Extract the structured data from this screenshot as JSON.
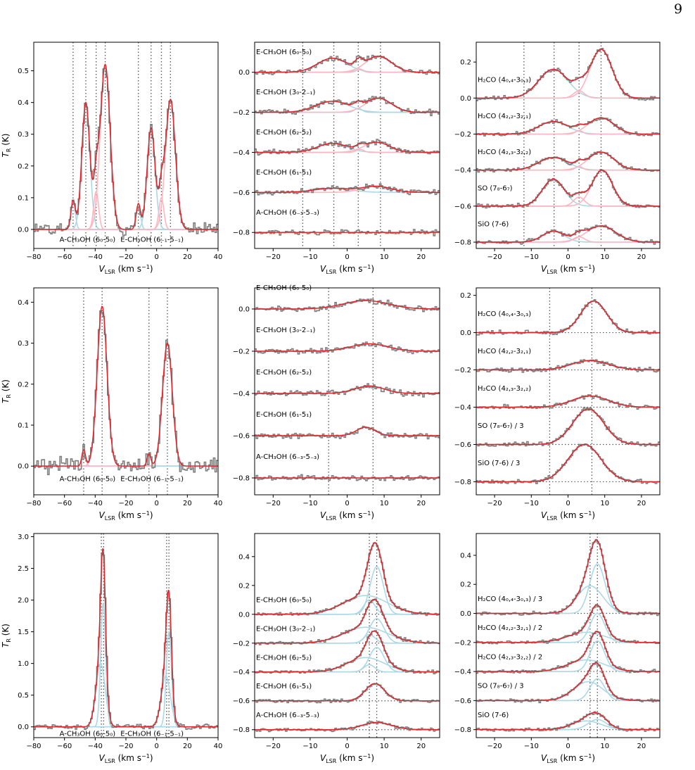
{
  "page_number": "9",
  "colors": {
    "data": "#808080",
    "fit": "#e0242a",
    "comp_blue": "#add8e6",
    "comp_pink": "#ffb6c1",
    "ref": "#555555"
  },
  "chart_data": [
    {
      "type": "line",
      "panel": "row1-left",
      "xlim": [
        -80,
        40
      ],
      "ylim": [
        -0.06,
        0.59
      ],
      "xlabel": "V_LSR (km s⁻¹)",
      "ylabel": "T_R (K)",
      "xticks": [
        -80,
        -60,
        -40,
        -20,
        0,
        20,
        40
      ],
      "yticks": [
        0,
        0.1,
        0.2,
        0.3,
        0.4,
        0.5
      ],
      "ytick_decimals": 1,
      "vlines": [
        -54.4,
        -46.1,
        -39.4,
        -33.5,
        -11.9,
        -3.6,
        3.1,
        9.0
      ],
      "line_labels": [
        {
          "text": "A-CH₃OH (6₀-5₀)",
          "x": -45
        },
        {
          "text": "E-CH₃OH (6₋₁-5₋₁)",
          "x": -3
        }
      ],
      "label_y": -0.03,
      "noise": 0.012,
      "components": [
        {
          "color": "blue",
          "amp": 0.09,
          "center": -54.4,
          "sigma": 1.4
        },
        {
          "color": "blue",
          "amp": 0.4,
          "center": -46.1,
          "sigma": 2.6
        },
        {
          "color": "pink",
          "amp": 0.12,
          "center": -39.4,
          "sigma": 1.6
        },
        {
          "color": "pink",
          "amp": 0.52,
          "center": -33.5,
          "sigma": 3.2
        },
        {
          "color": "blue",
          "amp": 0.08,
          "center": -11.9,
          "sigma": 1.4
        },
        {
          "color": "blue",
          "amp": 0.32,
          "center": -3.6,
          "sigma": 2.6
        },
        {
          "color": "pink",
          "amp": 0.1,
          "center": 3.1,
          "sigma": 1.6
        },
        {
          "color": "pink",
          "amp": 0.41,
          "center": 9.0,
          "sigma": 3.2
        }
      ]
    },
    {
      "type": "line",
      "panel": "row1-middle",
      "xlim": [
        -25,
        25
      ],
      "ylim": [
        -0.88,
        0.15
      ],
      "xlabel": "V_LSR (km s⁻¹)",
      "ylabel": "",
      "xticks": [
        -20,
        -10,
        0,
        10,
        20
      ],
      "yticks": [
        -0.8,
        -0.6,
        -0.4,
        -0.2,
        0
      ],
      "ytick_decimals": 1,
      "vlines": [
        -12,
        -3.6,
        3,
        9
      ],
      "hline_dotted": false,
      "noise": 0.008,
      "stacks": [
        {
          "label": "E-CH₃OH (6₀-5₀)",
          "offset": 0,
          "components": [
            {
              "color": "blue",
              "amp": 0.07,
              "center": -4,
              "sigma": 4
            },
            {
              "color": "blue",
              "amp": 0.02,
              "center": 3,
              "sigma": 1
            },
            {
              "color": "pink",
              "amp": 0.08,
              "center": 8.5,
              "sigma": 3.5
            },
            {
              "color": "pink",
              "amp": 0.015,
              "center": 3.5,
              "sigma": 1
            }
          ]
        },
        {
          "label": "E-CH₃OH (3₀-2₋₁)",
          "offset": -0.2,
          "components": [
            {
              "color": "blue",
              "amp": 0.055,
              "center": -4,
              "sigma": 4.5
            },
            {
              "color": "blue",
              "amp": 0.02,
              "center": 3,
              "sigma": 1
            },
            {
              "color": "pink",
              "amp": 0.07,
              "center": 8.5,
              "sigma": 3.5
            }
          ]
        },
        {
          "label": "E-CH₃OH (6₂-5₂)",
          "offset": -0.4,
          "components": [
            {
              "color": "blue",
              "amp": 0.045,
              "center": -4,
              "sigma": 4
            },
            {
              "color": "pink",
              "amp": 0.05,
              "center": 8,
              "sigma": 3.5
            },
            {
              "color": "pink",
              "amp": 0.015,
              "center": 3.5,
              "sigma": 1
            }
          ]
        },
        {
          "label": "E-CH₃OH (6₁-5₁)",
          "offset": -0.6,
          "components": [
            {
              "color": "blue",
              "amp": 0.02,
              "center": -4,
              "sigma": 5
            },
            {
              "color": "pink",
              "amp": 0.03,
              "center": 8,
              "sigma": 4
            }
          ]
        },
        {
          "label": "A-CH₃OH (6₋₃-5₋₃)",
          "offset": -0.8,
          "components": []
        }
      ]
    },
    {
      "type": "line",
      "panel": "row1-right",
      "xlim": [
        -25,
        25
      ],
      "ylim": [
        -0.835,
        0.31
      ],
      "xlabel": "V_LSR (km s⁻¹)",
      "ylabel": "",
      "xticks": [
        -20,
        -10,
        0,
        10,
        20
      ],
      "yticks": [
        -0.8,
        -0.6,
        -0.4,
        -0.2,
        0,
        0.2
      ],
      "ytick_decimals": 1,
      "vlines": [
        -12,
        -3.8,
        3,
        9
      ],
      "hline_dotted": false,
      "noise": 0.007,
      "stacks": [
        {
          "label": "H₂CO (4₀,₄-3₀,₃)",
          "offset": 0,
          "components": [
            {
              "color": "blue",
              "amp": 0.16,
              "center": -4,
              "sigma": 4
            },
            {
              "color": "pink",
              "amp": 0.04,
              "center": 3,
              "sigma": 1.5
            },
            {
              "color": "pink",
              "amp": 0.27,
              "center": 9,
              "sigma": 3
            }
          ]
        },
        {
          "label": "H₂CO (4₂,₂-3₂,₁)",
          "offset": -0.2,
          "components": [
            {
              "color": "blue",
              "amp": 0.07,
              "center": -4,
              "sigma": 4
            },
            {
              "color": "pink",
              "amp": 0.02,
              "center": 3,
              "sigma": 1
            },
            {
              "color": "pink",
              "amp": 0.09,
              "center": 9,
              "sigma": 3.5
            }
          ]
        },
        {
          "label": "H₂CO (4₂,₃-3₂,₂)",
          "offset": -0.4,
          "components": [
            {
              "color": "blue",
              "amp": 0.07,
              "center": -4,
              "sigma": 4
            },
            {
              "color": "pink",
              "amp": 0.02,
              "center": 3,
              "sigma": 1
            },
            {
              "color": "pink",
              "amp": 0.1,
              "center": 9,
              "sigma": 3.5
            }
          ]
        },
        {
          "label": "SO (7₈-6₇)",
          "offset": -0.6,
          "components": [
            {
              "color": "blue",
              "amp": 0.15,
              "center": -4,
              "sigma": 3
            },
            {
              "color": "pink",
              "amp": 0.05,
              "center": 3,
              "sigma": 1.5
            },
            {
              "color": "pink",
              "amp": 0.2,
              "center": 9.3,
              "sigma": 2.8
            }
          ]
        },
        {
          "label": "SiO (7-6)",
          "offset": -0.8,
          "components": [
            {
              "color": "blue",
              "amp": 0.06,
              "center": -4,
              "sigma": 3
            },
            {
              "color": "pink",
              "amp": 0.03,
              "center": 3,
              "sigma": 1.5
            },
            {
              "color": "pink",
              "amp": 0.09,
              "center": 9,
              "sigma": 4
            }
          ]
        }
      ]
    },
    {
      "type": "line",
      "panel": "row2-left",
      "xlim": [
        -80,
        40
      ],
      "ylim": [
        -0.07,
        0.435
      ],
      "xlabel": "V_LSR (km s⁻¹)",
      "ylabel": "T_R (K)",
      "xticks": [
        -80,
        -60,
        -40,
        -20,
        0,
        20,
        40
      ],
      "yticks": [
        0,
        0.1,
        0.2,
        0.3,
        0.4
      ],
      "ytick_decimals": 1,
      "vlines": [
        -47.5,
        -35.5,
        -5,
        7
      ],
      "line_labels": [
        {
          "text": "A-CH₃OH (6₀-5₀)",
          "x": -45
        },
        {
          "text": "E-CH₃OH (6₋₁-5₋₁)",
          "x": -3
        }
      ],
      "label_y": -0.03,
      "noise": 0.013,
      "components": [
        {
          "color": "pink",
          "amp": 0.04,
          "center": -47.5,
          "sigma": 1.2
        },
        {
          "color": "pink",
          "amp": 0.39,
          "center": -35.5,
          "sigma": 3.2
        },
        {
          "color": "blue",
          "amp": 0.03,
          "center": -5,
          "sigma": 1.2
        },
        {
          "color": "pink",
          "amp": 0.3,
          "center": 7,
          "sigma": 3.2
        }
      ]
    },
    {
      "type": "line",
      "panel": "row2-middle",
      "xlim": [
        -25,
        25
      ],
      "ylim": [
        -0.88,
        0.1
      ],
      "xlabel": "V_LSR (km s⁻¹)",
      "ylabel": "",
      "xticks": [
        -20,
        -10,
        0,
        10,
        20
      ],
      "yticks": [
        -0.8,
        -0.6,
        -0.4,
        -0.2,
        0
      ],
      "ytick_decimals": 1,
      "vlines": [
        -5,
        7
      ],
      "hline_dotted": false,
      "noise": 0.008,
      "stacks": [
        {
          "label": "E-CH₃OH (6₀-5₀)",
          "offset": 0,
          "components": [
            {
              "color": "pink",
              "amp": 0.04,
              "center": 5,
              "sigma": 6
            }
          ]
        },
        {
          "label": "E-CH₃OH (3₀-2₋₁)",
          "offset": -0.2,
          "components": [
            {
              "color": "pink",
              "amp": 0.035,
              "center": 6,
              "sigma": 5
            }
          ]
        },
        {
          "label": "E-CH₃OH (6₂-5₂)",
          "offset": -0.4,
          "components": [
            {
              "color": "pink",
              "amp": 0.035,
              "center": 6,
              "sigma": 4
            }
          ]
        },
        {
          "label": "E-CH₃OH (6₁-5₁)",
          "offset": -0.6,
          "components": [
            {
              "color": "pink",
              "amp": 0.04,
              "center": 5,
              "sigma": 2.5
            }
          ]
        },
        {
          "label": "A-CH₃OH (6₋₃-5₋₃)",
          "offset": -0.8,
          "components": []
        }
      ]
    },
    {
      "type": "line",
      "panel": "row2-right",
      "xlim": [
        -25,
        25
      ],
      "ylim": [
        -0.87,
        0.24
      ],
      "xlabel": "V_LSR (km s⁻¹)",
      "ylabel": "",
      "xticks": [
        -20,
        -10,
        0,
        10,
        20
      ],
      "yticks": [
        -0.8,
        -0.6,
        -0.4,
        -0.2,
        0,
        0.2
      ],
      "ytick_decimals": 1,
      "vlines": [
        -5,
        6.5
      ],
      "hline_dotted": true,
      "noise": 0.007,
      "stacks": [
        {
          "label": "H₂CO (4₀,₄-3₀,₃)",
          "offset": 0,
          "components": [
            {
              "color": "pink",
              "amp": 0.17,
              "center": 7,
              "sigma": 3.5
            }
          ]
        },
        {
          "label": "H₂CO (4₂,₂-3₂,₁)",
          "offset": -0.2,
          "components": [
            {
              "color": "pink",
              "amp": 0.05,
              "center": 6,
              "sigma": 5
            }
          ]
        },
        {
          "label": "H₂CO (4₂,₃-3₂,₂)",
          "offset": -0.4,
          "components": [
            {
              "color": "pink",
              "amp": 0.06,
              "center": 6,
              "sigma": 5
            }
          ]
        },
        {
          "label": "SO (7₈-6₇) / 3",
          "offset": -0.6,
          "components": [
            {
              "color": "pink",
              "amp": 0.19,
              "center": 5.5,
              "sigma": 4.2
            }
          ]
        },
        {
          "label": "SiO (7-6) / 3",
          "offset": -0.8,
          "components": [
            {
              "color": "pink",
              "amp": 0.2,
              "center": 4.5,
              "sigma": 4.5
            }
          ]
        }
      ]
    },
    {
      "type": "line",
      "panel": "row3-left",
      "xlim": [
        -80,
        40
      ],
      "ylim": [
        -0.17,
        3.05
      ],
      "xlabel": "V_LSR (km s⁻¹)",
      "ylabel": "T_R (K)",
      "xticks": [
        -80,
        -60,
        -40,
        -20,
        0,
        20,
        40
      ],
      "yticks": [
        0,
        0.5,
        1,
        1.5,
        2,
        2.5,
        3
      ],
      "ytick_decimals": 1,
      "vlines": [
        -36,
        -34.5,
        6.5,
        8
      ],
      "line_labels": [
        {
          "text": "A-CH₃OH (6₀-5₀)",
          "x": -45
        },
        {
          "text": "E-CH₃OH (6₋₁-5₋₁)",
          "x": -3
        }
      ],
      "label_y": -0.1,
      "noise": 0.025,
      "components": [
        {
          "color": "blue",
          "amp": 1.0,
          "center": -36.5,
          "sigma": 3
        },
        {
          "color": "blue",
          "amp": 1.95,
          "center": -34.8,
          "sigma": 1.6
        },
        {
          "color": "blue",
          "amp": 0.8,
          "center": 6,
          "sigma": 3
        },
        {
          "color": "blue",
          "amp": 1.5,
          "center": 8,
          "sigma": 1.7
        }
      ]
    },
    {
      "type": "line",
      "panel": "row3-middle",
      "xlim": [
        -25,
        25
      ],
      "ylim": [
        -0.855,
        0.56
      ],
      "xlabel": "V_LSR (km s⁻¹)",
      "ylabel": "",
      "xticks": [
        -20,
        -10,
        0,
        10,
        20
      ],
      "yticks": [
        -0.8,
        -0.6,
        -0.4,
        -0.2,
        0,
        0.2,
        0.4
      ],
      "ytick_decimals": 1,
      "vlines": [
        6,
        8
      ],
      "hline_dotted": true,
      "noise": 0.007,
      "stacks": [
        {
          "label": "E-CH₃OH (6₀-5₀)",
          "offset": 0,
          "components": [
            {
              "color": "blue",
              "amp": 0.13,
              "center": 5,
              "sigma": 6
            },
            {
              "color": "blue",
              "amp": 0.33,
              "center": 8,
              "sigma": 1.8
            },
            {
              "color": "blue",
              "amp": 0.1,
              "center": 6,
              "sigma": 1.5
            }
          ]
        },
        {
          "label": "E-CH₃OH (3₀-2₋₁)",
          "offset": -0.2,
          "components": [
            {
              "color": "blue",
              "amp": 0.11,
              "center": 5,
              "sigma": 6
            },
            {
              "color": "blue",
              "amp": 0.17,
              "center": 8,
              "sigma": 2
            },
            {
              "color": "blue",
              "amp": 0.06,
              "center": 6,
              "sigma": 1.5
            }
          ]
        },
        {
          "label": "E-CH₃OH (6₂-5₂)",
          "offset": -0.4,
          "components": [
            {
              "color": "blue",
              "amp": 0.1,
              "center": 5,
              "sigma": 5
            },
            {
              "color": "blue",
              "amp": 0.17,
              "center": 8,
              "sigma": 2
            },
            {
              "color": "blue",
              "amp": 0.05,
              "center": 6,
              "sigma": 1.5
            }
          ]
        },
        {
          "label": "E-CH₃OH (6₁-5₁)",
          "offset": -0.6,
          "components": [
            {
              "color": "blue",
              "amp": 0.12,
              "center": 7.5,
              "sigma": 2.6
            }
          ]
        },
        {
          "label": "A-CH₃OH (6₋₃-5₋₃)",
          "offset": -0.8,
          "components": [
            {
              "color": "blue",
              "amp": 0.05,
              "center": 8,
              "sigma": 4
            }
          ]
        }
      ]
    },
    {
      "type": "line",
      "panel": "row3-right",
      "xlim": [
        -25,
        25
      ],
      "ylim": [
        -0.855,
        0.55
      ],
      "xlabel": "V_LSR (km s⁻¹)",
      "ylabel": "",
      "xticks": [
        -20,
        -10,
        0,
        10,
        20
      ],
      "yticks": [
        -0.8,
        -0.6,
        -0.4,
        -0.2,
        0,
        0.2,
        0.4
      ],
      "ytick_decimals": 1,
      "vlines": [
        6,
        8
      ],
      "hline_dotted": true,
      "noise": 0.007,
      "stacks": [
        {
          "label": "H₂CO (4₀,₄-3₀,₃) / 3",
          "offset": 0,
          "components": [
            {
              "color": "blue",
              "amp": 0.19,
              "center": 6,
              "sigma": 3.5
            },
            {
              "color": "blue",
              "amp": 0.34,
              "center": 8,
              "sigma": 2.1
            }
          ]
        },
        {
          "label": "H₂CO (4₂,₂-3₂,₁) / 2",
          "offset": -0.2,
          "components": [
            {
              "color": "blue",
              "amp": 0.07,
              "center": 5,
              "sigma": 5
            },
            {
              "color": "blue",
              "amp": 0.2,
              "center": 8,
              "sigma": 2
            }
          ]
        },
        {
          "label": "H₂CO (4₂,₃-3₂,₂) / 2",
          "offset": -0.4,
          "components": [
            {
              "color": "blue",
              "amp": 0.08,
              "center": 5,
              "sigma": 5
            },
            {
              "color": "blue",
              "amp": 0.21,
              "center": 8,
              "sigma": 2
            }
          ]
        },
        {
          "label": "SO (7₈-6₇) / 3",
          "offset": -0.6,
          "components": [
            {
              "color": "blue",
              "amp": 0.13,
              "center": 5.5,
              "sigma": 4
            },
            {
              "color": "blue",
              "amp": 0.15,
              "center": 8,
              "sigma": 2
            }
          ]
        },
        {
          "label": "SiO (7-6)",
          "offset": -0.8,
          "components": [
            {
              "color": "blue",
              "amp": 0.06,
              "center": 5,
              "sigma": 4
            },
            {
              "color": "blue",
              "amp": 0.07,
              "center": 8,
              "sigma": 2.5
            }
          ]
        }
      ]
    }
  ]
}
